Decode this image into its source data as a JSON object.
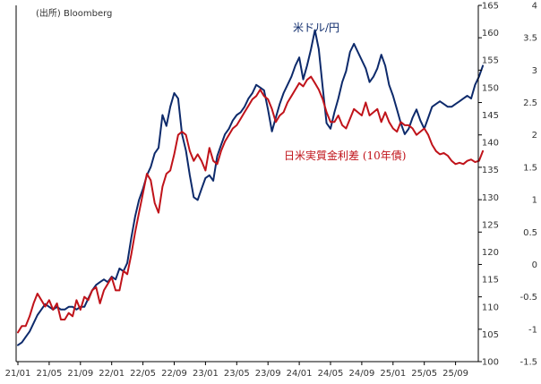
{
  "source_note": "(出所) Bloomberg",
  "chart_data": {
    "type": "line",
    "x_ticks": [
      "21/01",
      "21/05",
      "21/09",
      "22/01",
      "22/05",
      "22/09",
      "23/01",
      "23/05",
      "23/09",
      "24/01",
      "24/05",
      "24/09",
      "25/01",
      "25/05",
      "25/09"
    ],
    "y_left": {
      "ylim": [
        100,
        165
      ],
      "ticks": [
        "100",
        "105",
        "110",
        "115",
        "120",
        "125",
        "130",
        "135",
        "140",
        "145",
        "150",
        "155",
        "160",
        "165"
      ]
    },
    "y_right": {
      "ylim": [
        -1.5,
        4
      ],
      "ticks": [
        "-1.5",
        "-1",
        "-0.5",
        "0",
        "0.5",
        "1",
        "1.5",
        "2",
        "2.5",
        "3",
        "3.5",
        "4"
      ]
    },
    "series": [
      {
        "name": "米ドル/円",
        "axis": "left",
        "color": "#0d2a6b",
        "x": [
          0,
          0.5,
          1,
          1.5,
          2,
          2.5,
          3,
          3.5,
          4,
          4.5,
          5,
          5.5,
          6,
          6.5,
          7,
          7.5,
          8,
          8.5,
          9,
          9.5,
          10,
          10.5,
          11,
          11.5,
          12,
          12.5,
          13,
          13.5,
          14,
          14.5,
          15,
          15.5,
          16,
          16.5,
          17,
          17.5,
          18,
          18.5,
          19,
          19.5,
          20,
          20.5,
          21,
          21.5,
          22,
          22.5,
          23,
          23.5,
          24,
          24.5,
          25,
          25.5,
          26,
          26.5,
          27,
          27.5,
          28,
          28.5,
          29,
          29.5,
          30,
          30.5,
          31,
          31.5,
          32,
          32.5,
          33,
          33.5,
          34,
          34.5,
          35,
          35.5,
          36,
          36.5,
          37,
          37.5,
          38,
          38.5,
          39,
          39.5,
          40,
          40.5,
          41,
          41.5,
          42,
          42.5,
          43,
          43.5,
          44,
          44.5,
          45,
          45.5,
          46,
          46.5,
          47,
          47.5,
          48,
          48.5,
          49,
          49.5,
          50,
          50.5,
          51,
          51.5,
          52,
          52.5,
          53,
          53.5,
          54,
          54.5,
          55,
          55.5,
          56,
          56.5,
          57,
          57.5,
          58,
          58.5,
          59,
          59.5
        ],
        "values": [
          103.0,
          103.5,
          104.5,
          105.5,
          107.0,
          108.5,
          109.5,
          110.5,
          110.0,
          109.5,
          110.0,
          109.5,
          109.5,
          110.0,
          110.0,
          109.5,
          110.0,
          110.0,
          111.5,
          113.0,
          114.0,
          114.5,
          115.0,
          114.5,
          115.5,
          115.0,
          117.0,
          116.5,
          118.0,
          122.5,
          126.5,
          129.5,
          131.5,
          134.0,
          135.5,
          138.0,
          139.0,
          145.0,
          143.0,
          146.5,
          149.0,
          148.0,
          141.5,
          138.5,
          134.0,
          130.0,
          129.5,
          131.5,
          133.5,
          134.0,
          133.0,
          137.5,
          139.5,
          141.5,
          142.5,
          144.0,
          145.0,
          145.5,
          146.5,
          148.0,
          149.0,
          150.5,
          150.0,
          149.5,
          146.0,
          142.0,
          144.5,
          147.0,
          149.0,
          150.5,
          152.0,
          154.0,
          155.5,
          151.5,
          154.0,
          157.0,
          160.5,
          157.0,
          150.0,
          143.5,
          142.5,
          145.5,
          148.0,
          151.0,
          153.0,
          156.5,
          158.0,
          156.5,
          155.0,
          153.5,
          151.0,
          152.0,
          153.5,
          156.0,
          154.0,
          150.5,
          148.5,
          146.0,
          143.5,
          141.5,
          142.5,
          144.5,
          146.0,
          144.0,
          142.5,
          144.5,
          146.5,
          147.0,
          147.5,
          147.0,
          146.5,
          146.5,
          147.0,
          147.5,
          148.0,
          148.5,
          148.0,
          150.5,
          152.0,
          154.0
        ]
      },
      {
        "name": "日米実質金利差 (10年債)",
        "axis": "right",
        "color": "#c0131a",
        "x": [
          0,
          0.5,
          1,
          1.5,
          2,
          2.5,
          3,
          3.5,
          4,
          4.5,
          5,
          5.5,
          6,
          6.5,
          7,
          7.5,
          8,
          8.5,
          9,
          9.5,
          10,
          10.5,
          11,
          11.5,
          12,
          12.5,
          13,
          13.5,
          14,
          14.5,
          15,
          15.5,
          16,
          16.5,
          17,
          17.5,
          18,
          18.5,
          19,
          19.5,
          20,
          20.5,
          21,
          21.5,
          22,
          22.5,
          23,
          23.5,
          24,
          24.5,
          25,
          25.5,
          26,
          26.5,
          27,
          27.5,
          28,
          28.5,
          29,
          29.5,
          30,
          30.5,
          31,
          31.5,
          32,
          32.5,
          33,
          33.5,
          34,
          34.5,
          35,
          35.5,
          36,
          36.5,
          37,
          37.5,
          38,
          38.5,
          39,
          39.5,
          40,
          40.5,
          41,
          41.5,
          42,
          42.5,
          43,
          43.5,
          44,
          44.5,
          45,
          45.5,
          46,
          46.5,
          47,
          47.5,
          48,
          48.5,
          49,
          49.5,
          50,
          50.5,
          51,
          51.5,
          52,
          52.5,
          53,
          53.5,
          54,
          54.5,
          55,
          55.5,
          56,
          56.5,
          57,
          57.5,
          58,
          58.5,
          59,
          59.5
        ],
        "values": [
          -1.05,
          -0.95,
          -0.95,
          -0.8,
          -0.6,
          -0.45,
          -0.55,
          -0.65,
          -0.55,
          -0.7,
          -0.6,
          -0.85,
          -0.85,
          -0.75,
          -0.8,
          -0.55,
          -0.7,
          -0.5,
          -0.55,
          -0.4,
          -0.35,
          -0.6,
          -0.4,
          -0.3,
          -0.2,
          -0.4,
          -0.4,
          -0.1,
          -0.15,
          0.15,
          0.5,
          0.8,
          1.1,
          1.4,
          1.3,
          0.95,
          0.8,
          1.2,
          1.4,
          1.45,
          1.7,
          2.0,
          2.05,
          2.0,
          1.75,
          1.6,
          1.7,
          1.6,
          1.45,
          1.8,
          1.6,
          1.55,
          1.75,
          1.9,
          2.0,
          2.1,
          2.15,
          2.25,
          2.35,
          2.45,
          2.55,
          2.6,
          2.7,
          2.6,
          2.55,
          2.4,
          2.2,
          2.3,
          2.35,
          2.5,
          2.6,
          2.7,
          2.8,
          2.75,
          2.85,
          2.9,
          2.8,
          2.7,
          2.55,
          2.35,
          2.2,
          2.2,
          2.3,
          2.15,
          2.1,
          2.25,
          2.4,
          2.35,
          2.3,
          2.5,
          2.3,
          2.35,
          2.4,
          2.2,
          2.35,
          2.2,
          2.1,
          2.05,
          2.2,
          2.15,
          2.15,
          2.1,
          2.0,
          2.05,
          2.1,
          2.0,
          1.85,
          1.75,
          1.7,
          1.72,
          1.68,
          1.6,
          1.55,
          1.57,
          1.55,
          1.6,
          1.62,
          1.58,
          1.6,
          1.75
        ]
      }
    ],
    "annotations": [
      "米ドル/円",
      "日米実質金利差 (10年債)"
    ]
  }
}
